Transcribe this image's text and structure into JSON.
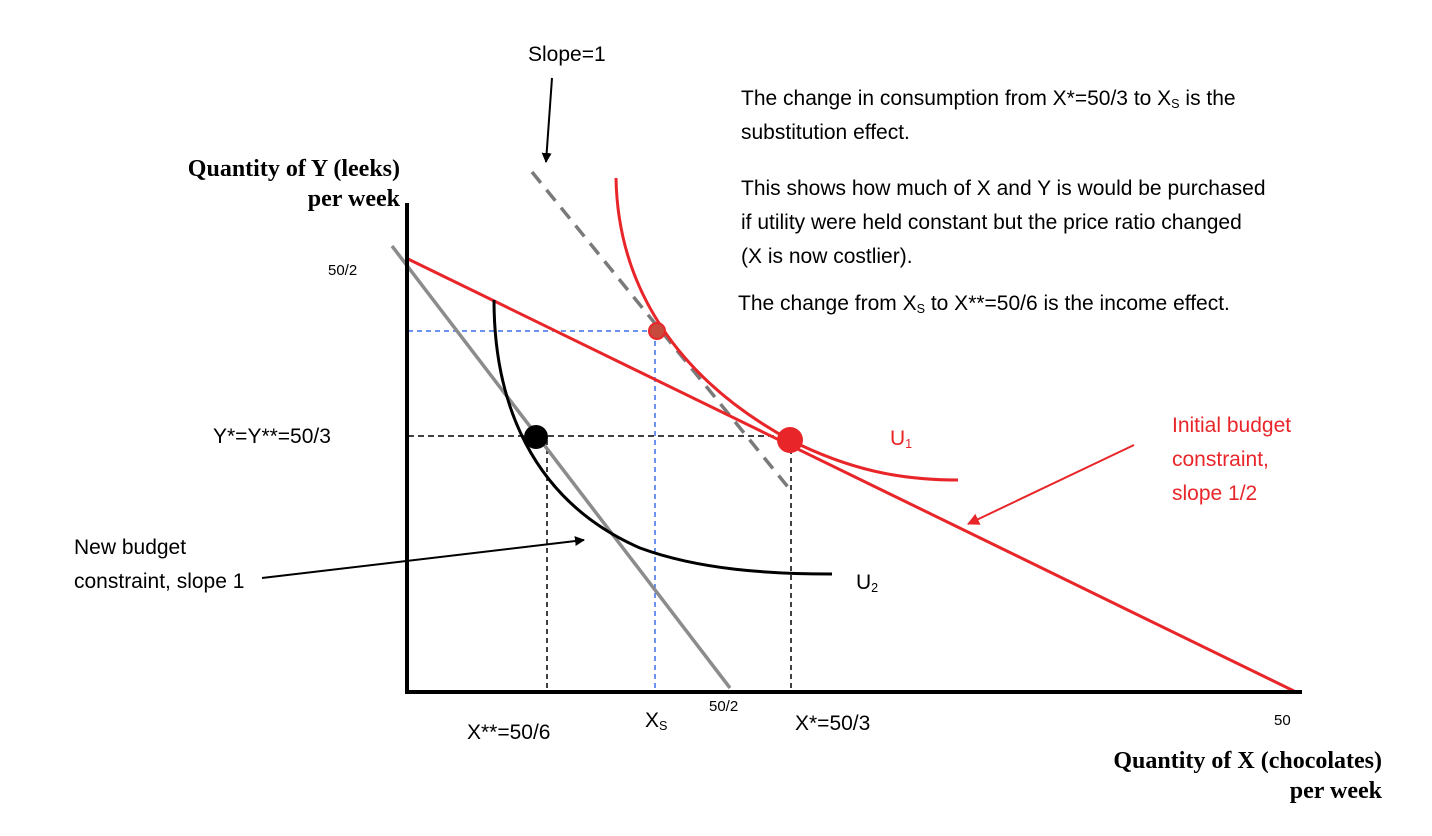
{
  "annotations": {
    "slope_label": "Slope=1",
    "note1_a": "The change in consumption from X*=50/3 to X",
    "note1_sub": "S",
    "note1_b": " is the",
    "note1_c": "substitution effect.",
    "note2_line1": "This shows how much of X and Y is would be purchased",
    "note2_line2": "if utility were held constant but the price ratio changed",
    "note2_line3": "(X is now costlier).",
    "note3_a": "The change from X",
    "note3_sub": "S",
    "note3_b": " to X**=50/6 is the income effect."
  },
  "axes": {
    "y_title_line1": "Quantity of Y (leeks)",
    "y_title_line2": "per week",
    "x_title_line1": "Quantity of X (chocolates)",
    "x_title_line2": "per week",
    "y_tick_top": "50/2",
    "y_tick_star": "Y*=Y**=50/3",
    "x_tick_xss": "X**=50/6",
    "x_tick_xs": "X",
    "x_tick_xs_sub": "S",
    "x_tick_half": "50/2",
    "x_tick_xstar": "X*=50/3",
    "x_tick_max": "50"
  },
  "curves": {
    "u1_label": "U",
    "u1_sub": "1",
    "u2_label": "U",
    "u2_sub": "2"
  },
  "labels": {
    "initial_budget_line1": "Initial budget",
    "initial_budget_line2": "constraint,",
    "initial_budget_line3": "slope 1/2",
    "new_budget_line1": "New budget",
    "new_budget_line2": "constraint, slope 1"
  },
  "colors": {
    "red": "#e8262a",
    "gray": "#8c8c8c",
    "dashed_gray": "#7a7a7a",
    "blue_dash": "#3a6fe8",
    "black": "#000000"
  }
}
